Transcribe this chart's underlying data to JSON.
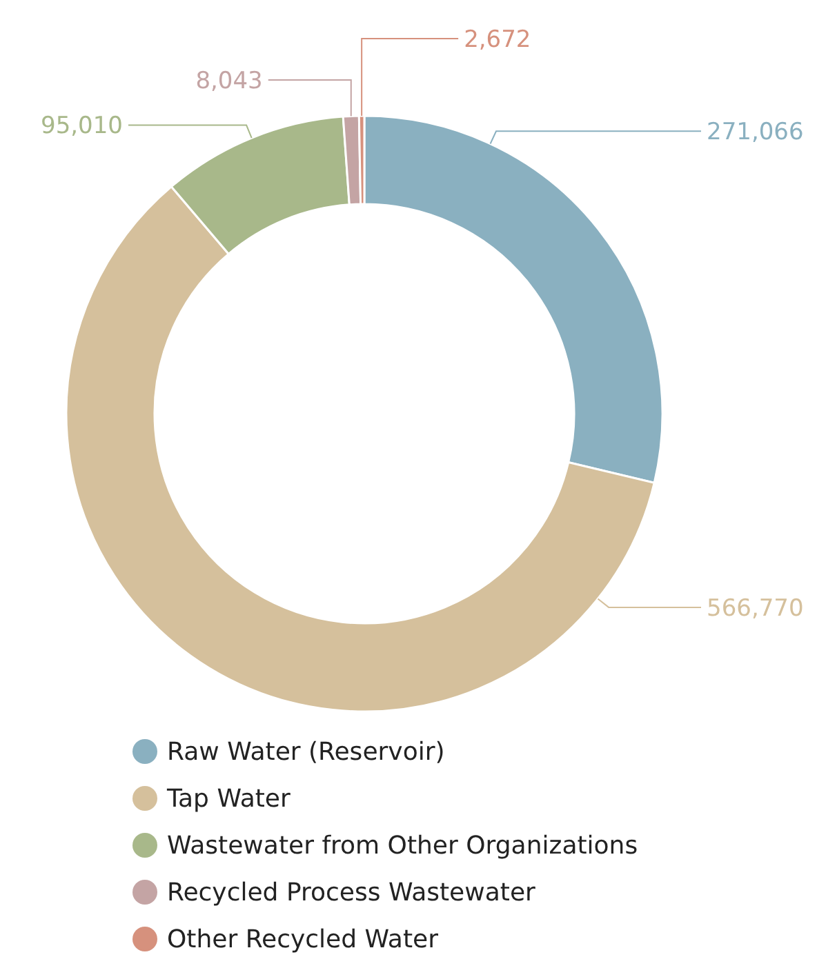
{
  "chart_data": {
    "type": "donut",
    "categories": [
      "Raw Water (Reservoir)",
      "Tap Water",
      "Wastewater from Other Organizations",
      "Recycled Process Wastewater",
      "Other Recycled Water"
    ],
    "values": [
      271066,
      566770,
      95010,
      8043,
      2672
    ],
    "colors": [
      "#8ab0c0",
      "#d5c09c",
      "#a8b88a",
      "#c4a4a4",
      "#d6917d"
    ],
    "value_labels": [
      "271,066",
      "566,770",
      "95,010",
      "8,043",
      "2,672"
    ],
    "legend": "bottom"
  }
}
